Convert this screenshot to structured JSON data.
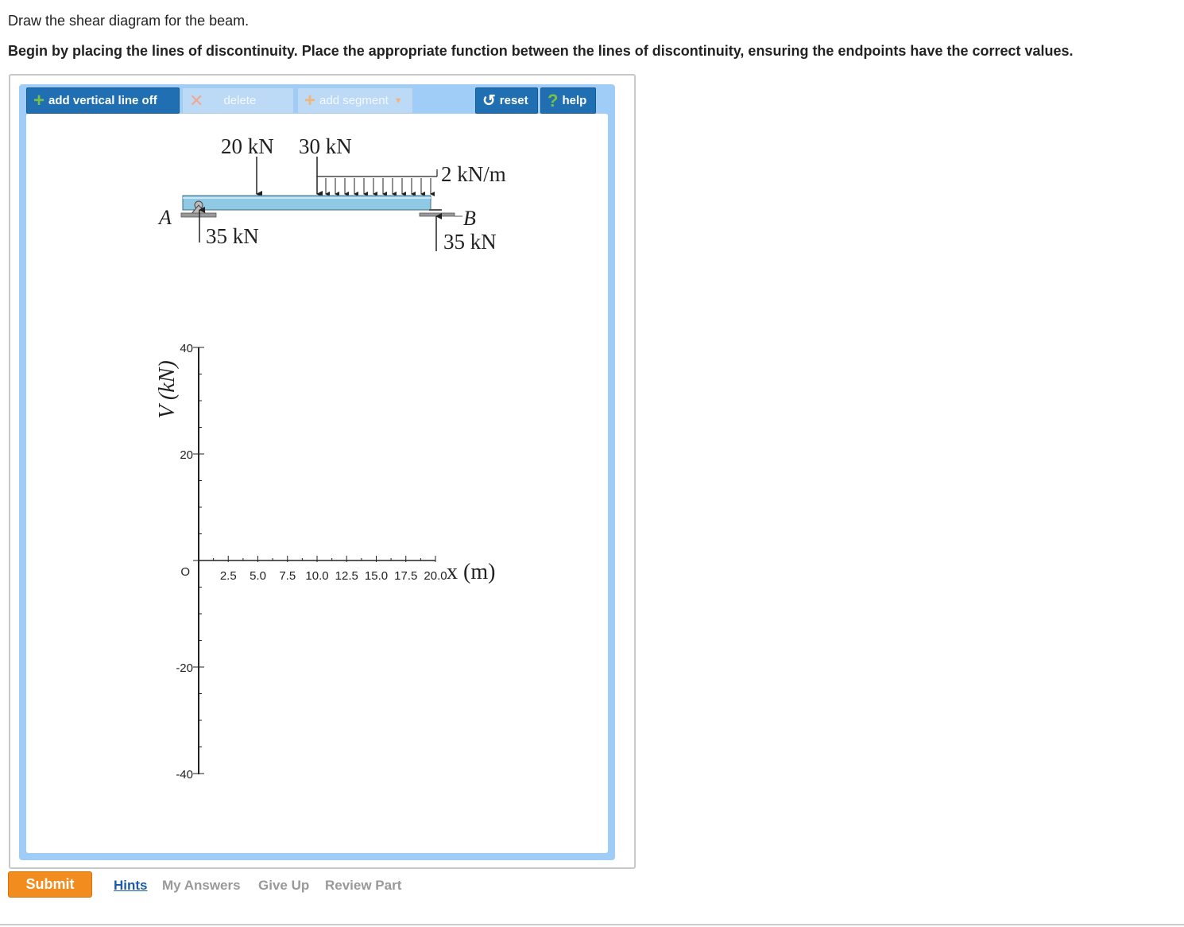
{
  "instructions": {
    "line1": "Draw the shear diagram for the beam.",
    "line2": "Begin by placing the lines of discontinuity. Place the appropriate function between the lines of discontinuity, ensuring the endpoints have the correct values."
  },
  "toolbar": {
    "add_vertical_line_label": "add vertical line off",
    "delete_label": "delete",
    "add_segment_label": "add segment",
    "reset_label": "reset",
    "help_label": "help"
  },
  "beam_figure": {
    "load_20kN": "20 kN",
    "load_30kN": "30 kN",
    "distributed_load": "2 kN/m",
    "support_a_label": "A",
    "support_b_label": "B",
    "reaction_a": "35 kN",
    "reaction_b": "35 kN"
  },
  "chart_data": {
    "type": "line",
    "ylabel": "V (kN)",
    "xlabel": "x (m)",
    "ylim": [
      -40,
      40
    ],
    "xlim": [
      0,
      20
    ],
    "y_ticks_labeled": [
      "40",
      "20",
      "O",
      "-20",
      "-40"
    ],
    "x_ticks_labeled": [
      "2.5",
      "5.0",
      "7.5",
      "10.0",
      "12.5",
      "15.0",
      "17.5",
      "20.0"
    ],
    "series": []
  },
  "footer": {
    "submit_label": "Submit",
    "hints_label": "Hints",
    "my_answers_label": "My Answers",
    "give_up_label": "Give Up",
    "review_part_label": "Review Part"
  },
  "colors": {
    "toolbar_active": "#1f6fb2",
    "toolbar_disabled": "#bcdaf5",
    "frame": "#9fcdf7",
    "submit": "#f38c1e",
    "link": "#1d5aa8",
    "beam": "#8fc9e4"
  }
}
